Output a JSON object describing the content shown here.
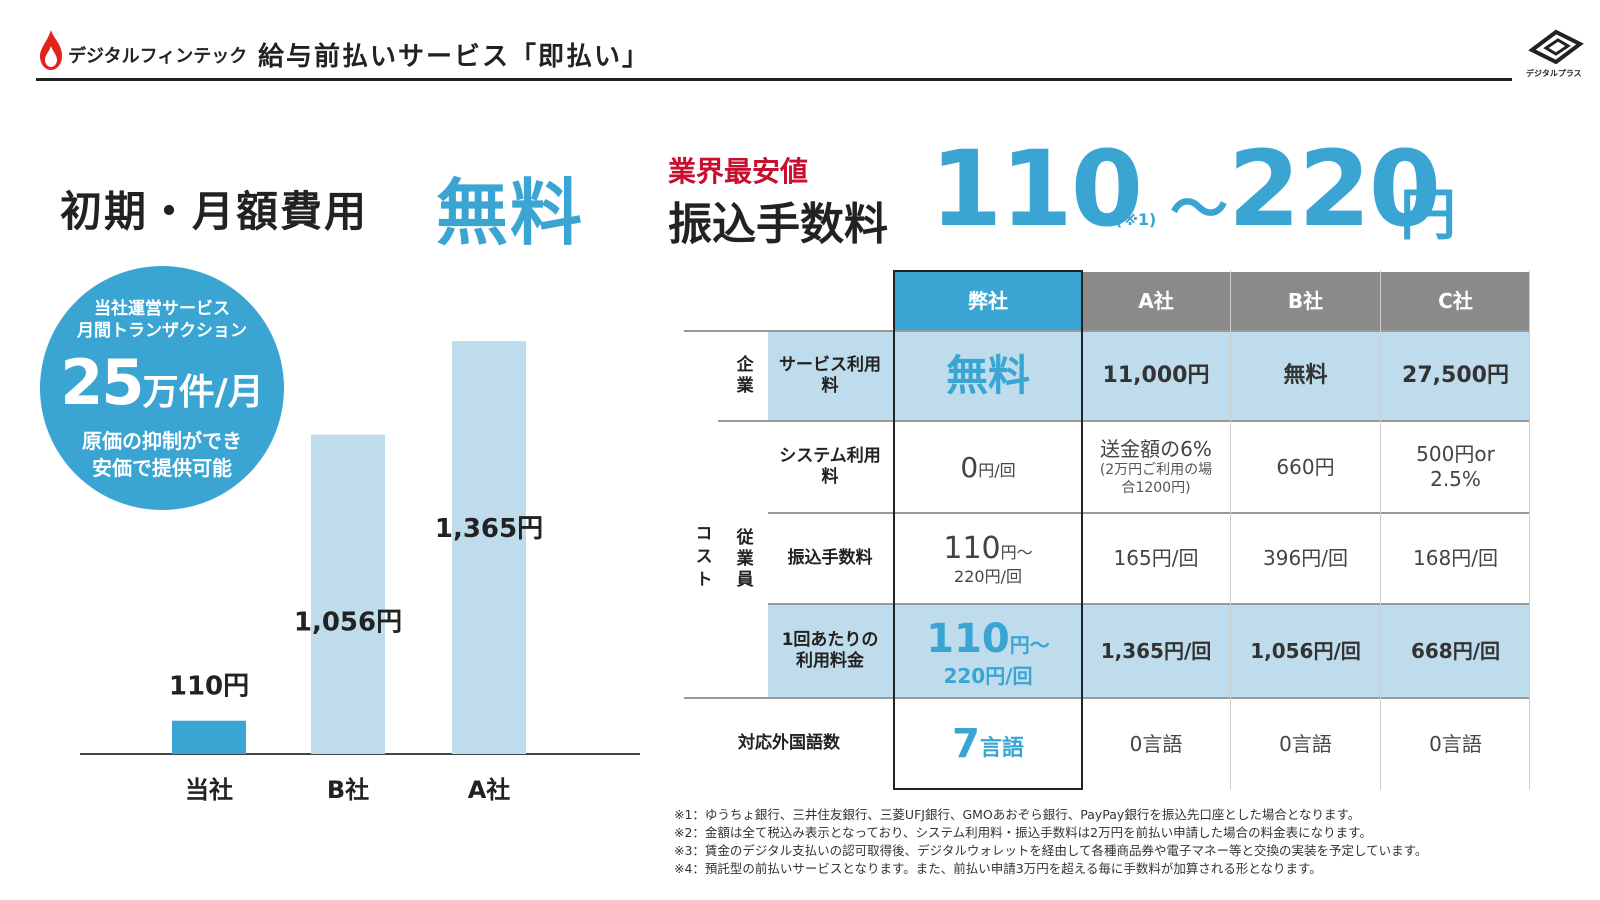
{
  "header": {
    "brand": "デジタルフィンテック",
    "title": "給与前払いサービス「即払い」",
    "brand_mark_text": "デジタルプラス"
  },
  "hero": {
    "fee_label": "初期・月額費用",
    "fee_value": "無料",
    "lowest_label": "業界最安値",
    "transfer_label": "振込手数料",
    "price_min": "110",
    "price_note": "(※1)",
    "price_tilde": "〜",
    "price_max": "220",
    "price_unit": "円"
  },
  "circle": {
    "line1": "当社運営サービス",
    "line2": "月間トランザクション",
    "big_number": "25",
    "big_unit": "万件/月",
    "line3": "原価の抑制ができ",
    "line4": "安価で提供可能"
  },
  "chart_data": {
    "type": "bar",
    "categories": [
      "当社",
      "B社",
      "A社"
    ],
    "values": [
      110,
      1056,
      1365
    ],
    "value_labels": [
      "110円",
      "1,056円",
      "1,365円"
    ],
    "colors": [
      "#3aa5d3",
      "#bfdcec",
      "#bfdcec"
    ],
    "ylim": [
      0,
      1600
    ],
    "grid": false,
    "title": "",
    "xlabel": "",
    "ylabel": ""
  },
  "table": {
    "headers": [
      "弊社",
      "A社",
      "B社",
      "C社"
    ],
    "group_cost": "コスト",
    "group_company": "企業",
    "group_employee": "従業員",
    "rows": {
      "service_fee": {
        "label": "サービス利用料",
        "ours": "無料",
        "a": "11,000円",
        "b": "無料",
        "c": "27,500円"
      },
      "system_fee": {
        "label": "システム利用料",
        "ours_num": "0",
        "ours_unit": "円/回",
        "a_main": "送金額の6%",
        "a_sub": "(2万円ご利用の場合1200円)",
        "b": "660円",
        "c": "500円or 2.5%"
      },
      "transfer_fee": {
        "label": "振込手数料",
        "ours_num": "110",
        "ours_unit": "円〜",
        "ours_sub": "220円/回",
        "a": "165円/回",
        "b": "396円/回",
        "c": "168円/回"
      },
      "per_use": {
        "label": "1回あたりの利用料金",
        "ours_num": "110",
        "ours_unit": "円〜",
        "ours_sub": "220円/回",
        "a": "1,365円/回",
        "b": "1,056円/回",
        "c": "668円/回"
      },
      "languages": {
        "label": "対応外国語数",
        "ours_num": "7",
        "ours_unit": "言語",
        "a": "0言語",
        "b": "0言語",
        "c": "0言語"
      }
    }
  },
  "footnotes": [
    "※1：ゆうちょ銀行、三井住友銀行、三菱UFJ銀行、GMOあおぞら銀行、PayPay銀行を振込先口座とした場合となります。",
    "※2：金額は全て税込み表示となっており、システム利用料・振込手数料は2万円を前払い申請した場合の料金表になります。",
    "※3：賃金のデジタル支払いの認可取得後、デジタルウォレットを経由して各種商品券や電子マネー等と交換の実装を予定しています。",
    "※4：預託型の前払いサービスとなります。また、前払い申請3万円を超える毎に手数料が加算される形となります。"
  ],
  "colors": {
    "accent": "#3aa5d3",
    "accent_light": "#bfdcec",
    "red": "#c8102e",
    "header_gray": "#8a8a8a"
  }
}
